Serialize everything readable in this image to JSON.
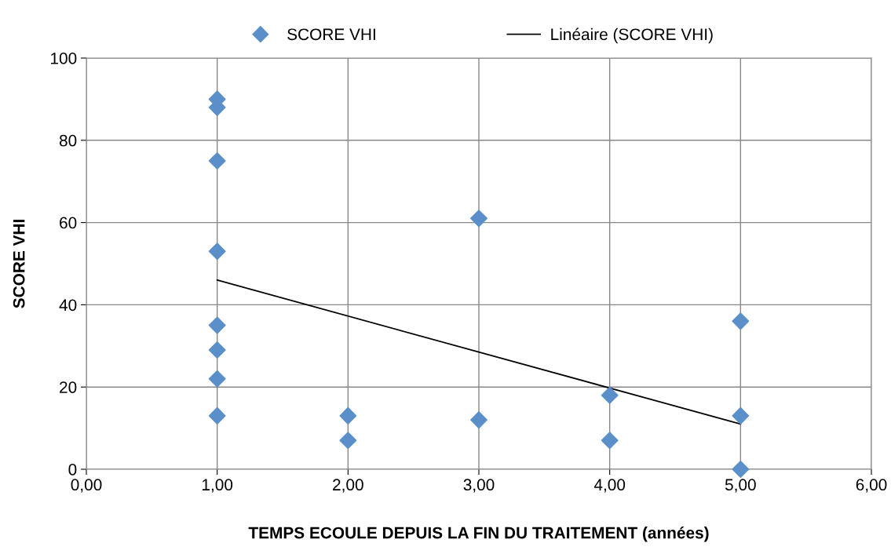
{
  "chart_data": {
    "type": "scatter",
    "xlabel": "TEMPS ECOULE DEPUIS LA FIN DU TRAITEMENT (années)",
    "ylabel": "SCORE VHI",
    "series": [
      {
        "name": "SCORE VHI",
        "color": "#5b8fc9",
        "marker": "diamond",
        "x": [
          1,
          1,
          1,
          1,
          1,
          1,
          1,
          1,
          2,
          2,
          3,
          3,
          4,
          4,
          5,
          5,
          5
        ],
        "values": [
          90,
          88,
          75,
          53,
          35,
          29,
          22,
          13,
          13,
          7,
          61,
          12,
          18,
          7,
          36,
          13,
          0
        ]
      },
      {
        "name": "Linéaire (SCORE VHI)",
        "type": "line",
        "color": "#000000",
        "marker": "none",
        "line_style": "solid",
        "x": [
          1,
          5
        ],
        "values": [
          46,
          11
        ]
      }
    ],
    "xlim": [
      0,
      6
    ],
    "xticks": [
      {
        "value": 0,
        "label": "0,00"
      },
      {
        "value": 1,
        "label": "1,00"
      },
      {
        "value": 2,
        "label": "2,00"
      },
      {
        "value": 3,
        "label": "3,00"
      },
      {
        "value": 4,
        "label": "4,00"
      },
      {
        "value": 5,
        "label": "5,00"
      },
      {
        "value": 6,
        "label": "6,00"
      }
    ],
    "ylim": [
      0,
      100
    ],
    "yticks": [
      0,
      20,
      40,
      60,
      80,
      100
    ],
    "grid": true,
    "legend": "top"
  }
}
